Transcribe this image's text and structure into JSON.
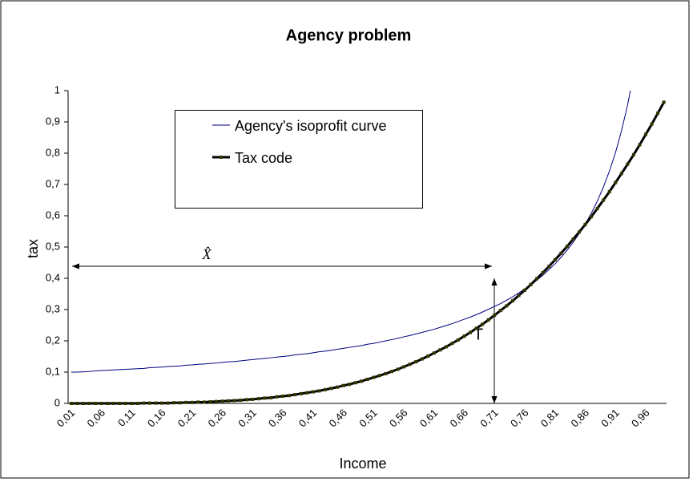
{
  "chart_data": {
    "type": "line",
    "title": "Agency problem",
    "x_label": "Income",
    "y_label": "tax",
    "categories": [
      "0,01",
      null,
      null,
      null,
      null,
      "0,06",
      null,
      null,
      null,
      null,
      "0,11",
      null,
      null,
      null,
      null,
      "0,16",
      null,
      null,
      null,
      null,
      "0,21",
      null,
      null,
      null,
      null,
      "0,26",
      null,
      null,
      null,
      null,
      "0,31",
      null,
      null,
      null,
      null,
      "0,36",
      null,
      null,
      null,
      null,
      "0,41",
      null,
      null,
      null,
      null,
      "0,46",
      null,
      null,
      null,
      null,
      "0,51",
      null,
      null,
      null,
      null,
      "0,56",
      null,
      null,
      null,
      null,
      "0,61",
      null,
      null,
      null,
      null,
      "0,66",
      null,
      null,
      null,
      null,
      "0,71",
      null,
      null,
      null,
      null,
      "0,76",
      null,
      null,
      null,
      null,
      "0,81",
      null,
      null,
      null,
      null,
      "0,86",
      null,
      null,
      null,
      null,
      "0,91",
      null,
      null,
      null,
      null,
      "0,96",
      null,
      null,
      null
    ],
    "series": [
      {
        "name": "Agency's isoprofit curve",
        "color": "#000080",
        "markers": false,
        "values": [
          0.1,
          0.1,
          0.101,
          0.102,
          0.104,
          0.105,
          0.106,
          0.107,
          0.108,
          0.109,
          0.11,
          0.111,
          0.112,
          0.114,
          0.115,
          0.116,
          0.118,
          0.119,
          0.12,
          0.122,
          0.123,
          0.125,
          0.126,
          0.128,
          0.129,
          0.131,
          0.133,
          0.134,
          0.136,
          0.138,
          0.14,
          0.142,
          0.144,
          0.146,
          0.148,
          0.15,
          0.152,
          0.155,
          0.157,
          0.159,
          0.162,
          0.165,
          0.167,
          0.17,
          0.173,
          0.176,
          0.179,
          0.182,
          0.185,
          0.189,
          0.192,
          0.196,
          0.2,
          0.204,
          0.208,
          0.213,
          0.217,
          0.222,
          0.227,
          0.232,
          0.237,
          0.243,
          0.249,
          0.255,
          0.262,
          0.269,
          0.276,
          0.284,
          0.292,
          0.301,
          0.31,
          0.319,
          0.33,
          0.341,
          0.353,
          0.366,
          0.379,
          0.394,
          0.41,
          0.428,
          0.446,
          0.467,
          0.49,
          0.515,
          0.543,
          0.573,
          0.608,
          0.647,
          0.692,
          0.743,
          0.802,
          0.872,
          0.954,
          1.055,
          null,
          null,
          null,
          null,
          null
        ]
      },
      {
        "name": "Tax code",
        "color": "#000000",
        "markers": true,
        "marker_color": "#333300",
        "values": [
          0,
          0,
          0,
          0,
          0,
          0,
          0,
          0,
          0,
          0,
          0,
          0,
          0.001,
          0.001,
          0.001,
          0.001,
          0.001,
          0.002,
          0.002,
          0.003,
          0.003,
          0.004,
          0.004,
          0.005,
          0.006,
          0.007,
          0.008,
          0.009,
          0.01,
          0.012,
          0.013,
          0.015,
          0.017,
          0.018,
          0.021,
          0.023,
          0.025,
          0.028,
          0.031,
          0.034,
          0.037,
          0.04,
          0.044,
          0.048,
          0.052,
          0.057,
          0.061,
          0.066,
          0.071,
          0.077,
          0.083,
          0.089,
          0.095,
          0.102,
          0.109,
          0.117,
          0.125,
          0.133,
          0.142,
          0.151,
          0.161,
          0.171,
          0.181,
          0.192,
          0.203,
          0.215,
          0.227,
          0.24,
          0.253,
          0.267,
          0.282,
          0.297,
          0.312,
          0.328,
          0.345,
          0.362,
          0.38,
          0.399,
          0.418,
          0.438,
          0.459,
          0.48,
          0.502,
          0.525,
          0.548,
          0.572,
          0.597,
          0.623,
          0.65,
          0.677,
          0.706,
          0.735,
          0.765,
          0.795,
          0.827,
          0.86,
          0.893,
          0.928,
          0.963
        ]
      }
    ],
    "ylim": [
      0,
      1
    ],
    "yticks": [
      0,
      {
        "value": 0.1,
        "label": "0,1"
      },
      {
        "value": 0.2,
        "label": "0,2"
      },
      {
        "value": 0.3,
        "label": "0,3"
      },
      {
        "value": 0.4,
        "label": "0,4"
      },
      {
        "value": 0.5,
        "label": "0,5"
      },
      {
        "value": 0.6,
        "label": "0,6"
      },
      {
        "value": 0.7,
        "label": "0,7"
      },
      {
        "value": 0.8,
        "label": "0,8"
      },
      {
        "value": 0.9,
        "label": "0,9"
      },
      1
    ],
    "grid": false,
    "annotations": [
      "X̂",
      "T"
    ]
  }
}
